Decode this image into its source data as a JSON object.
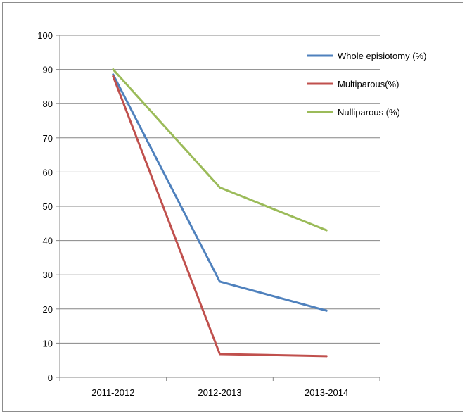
{
  "chart_data": {
    "type": "line",
    "title": "",
    "xlabel": "",
    "ylabel": "",
    "categories": [
      "2011-2012",
      "2012-2013",
      "2013-2014"
    ],
    "ylim": [
      0,
      100
    ],
    "yticks": [
      0,
      10,
      20,
      30,
      40,
      50,
      60,
      70,
      80,
      90,
      100
    ],
    "grid": "horizontal",
    "legend_position": "top-right",
    "series": [
      {
        "name": "Whole episiotomy (%)",
        "color": "#4f81bd",
        "values": [
          88.5,
          28,
          19.5
        ]
      },
      {
        "name": "Multiparous(%)",
        "color": "#c0504d",
        "values": [
          88,
          6.8,
          6.2
        ]
      },
      {
        "name": "Nulliparous (%)",
        "color": "#9bbb59",
        "values": [
          90,
          55.5,
          43
        ]
      }
    ]
  }
}
